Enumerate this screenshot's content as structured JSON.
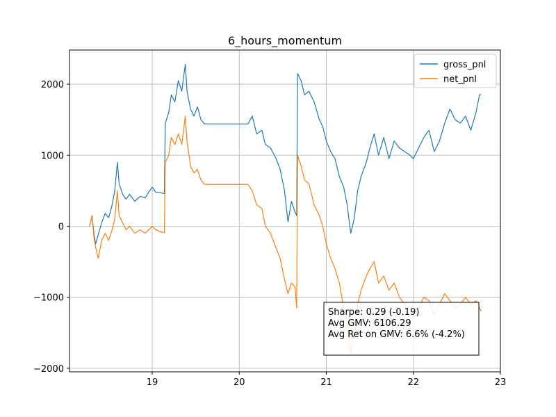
{
  "chart_data": {
    "type": "line",
    "title": "6_hours_momentum",
    "xlabel": "",
    "ylabel": "",
    "xlim": [
      18.05,
      23.0
    ],
    "ylim": [
      -2050,
      2480
    ],
    "xticks": [
      19,
      20,
      21,
      22,
      23
    ],
    "xtick_labels": [
      "19",
      "20",
      "21",
      "22",
      "23"
    ],
    "yticks": [
      -2000,
      -1000,
      0,
      1000,
      2000
    ],
    "ytick_labels": [
      "−2000",
      "−1000",
      "0",
      "1000",
      "2000"
    ],
    "grid": true,
    "legend": {
      "placement": "top-right"
    },
    "series": [
      {
        "name": "gross_pnl",
        "color": "#1f77b4",
        "points": [
          [
            18.28,
            0
          ],
          [
            18.31,
            150
          ],
          [
            18.33,
            -100
          ],
          [
            18.35,
            -250
          ],
          [
            18.38,
            -120
          ],
          [
            18.42,
            50
          ],
          [
            18.46,
            180
          ],
          [
            18.5,
            120
          ],
          [
            18.54,
            300
          ],
          [
            18.57,
            500
          ],
          [
            18.6,
            900
          ],
          [
            18.62,
            600
          ],
          [
            18.66,
            450
          ],
          [
            18.7,
            380
          ],
          [
            18.74,
            450
          ],
          [
            18.8,
            350
          ],
          [
            18.86,
            420
          ],
          [
            18.92,
            400
          ],
          [
            18.96,
            480
          ],
          [
            19.0,
            550
          ],
          [
            19.04,
            480
          ],
          [
            19.1,
            470
          ],
          [
            19.14,
            460
          ],
          [
            19.15,
            1450
          ],
          [
            19.19,
            1600
          ],
          [
            19.22,
            1850
          ],
          [
            19.26,
            1750
          ],
          [
            19.3,
            2050
          ],
          [
            19.34,
            1900
          ],
          [
            19.38,
            2280
          ],
          [
            19.4,
            1900
          ],
          [
            19.44,
            1650
          ],
          [
            19.48,
            1550
          ],
          [
            19.52,
            1680
          ],
          [
            19.56,
            1500
          ],
          [
            19.6,
            1440
          ],
          [
            19.8,
            1440
          ],
          [
            20.0,
            1440
          ],
          [
            20.1,
            1440
          ],
          [
            20.15,
            1550
          ],
          [
            20.2,
            1300
          ],
          [
            20.26,
            1350
          ],
          [
            20.3,
            1150
          ],
          [
            20.36,
            1100
          ],
          [
            20.42,
            960
          ],
          [
            20.47,
            800
          ],
          [
            20.52,
            500
          ],
          [
            20.56,
            60
          ],
          [
            20.6,
            350
          ],
          [
            20.64,
            200
          ],
          [
            20.66,
            150
          ],
          [
            20.67,
            2150
          ],
          [
            20.71,
            2050
          ],
          [
            20.75,
            1850
          ],
          [
            20.8,
            1900
          ],
          [
            20.86,
            1750
          ],
          [
            20.92,
            1500
          ],
          [
            20.96,
            1400
          ],
          [
            21.0,
            1200
          ],
          [
            21.05,
            1050
          ],
          [
            21.1,
            950
          ],
          [
            21.15,
            700
          ],
          [
            21.2,
            550
          ],
          [
            21.24,
            300
          ],
          [
            21.28,
            -100
          ],
          [
            21.32,
            100
          ],
          [
            21.36,
            500
          ],
          [
            21.4,
            700
          ],
          [
            21.46,
            900
          ],
          [
            21.5,
            1100
          ],
          [
            21.55,
            1300
          ],
          [
            21.6,
            1000
          ],
          [
            21.66,
            1250
          ],
          [
            21.72,
            950
          ],
          [
            21.78,
            1200
          ],
          [
            21.84,
            1100
          ],
          [
            21.9,
            1050
          ],
          [
            21.96,
            1000
          ],
          [
            22.0,
            950
          ],
          [
            22.06,
            1100
          ],
          [
            22.12,
            1250
          ],
          [
            22.18,
            1350
          ],
          [
            22.24,
            1050
          ],
          [
            22.3,
            1200
          ],
          [
            22.36,
            1450
          ],
          [
            22.42,
            1650
          ],
          [
            22.48,
            1500
          ],
          [
            22.54,
            1450
          ],
          [
            22.6,
            1550
          ],
          [
            22.66,
            1350
          ],
          [
            22.72,
            1600
          ],
          [
            22.76,
            1850
          ],
          [
            22.78,
            1850
          ]
        ]
      },
      {
        "name": "net_pnl",
        "color": "#ff7f0e",
        "points": [
          [
            18.28,
            0
          ],
          [
            18.31,
            150
          ],
          [
            18.33,
            -150
          ],
          [
            18.35,
            -300
          ],
          [
            18.38,
            -450
          ],
          [
            18.42,
            -200
          ],
          [
            18.46,
            -100
          ],
          [
            18.5,
            -200
          ],
          [
            18.54,
            -50
          ],
          [
            18.57,
            100
          ],
          [
            18.6,
            500
          ],
          [
            18.62,
            150
          ],
          [
            18.66,
            50
          ],
          [
            18.7,
            -50
          ],
          [
            18.74,
            0
          ],
          [
            18.8,
            -100
          ],
          [
            18.86,
            -50
          ],
          [
            18.92,
            -100
          ],
          [
            18.96,
            -50
          ],
          [
            19.0,
            0
          ],
          [
            19.04,
            -50
          ],
          [
            19.1,
            -80
          ],
          [
            19.14,
            -90
          ],
          [
            19.15,
            900
          ],
          [
            19.19,
            1000
          ],
          [
            19.22,
            1250
          ],
          [
            19.26,
            1150
          ],
          [
            19.3,
            1300
          ],
          [
            19.34,
            1150
          ],
          [
            19.38,
            1550
          ],
          [
            19.4,
            1200
          ],
          [
            19.44,
            850
          ],
          [
            19.48,
            750
          ],
          [
            19.52,
            800
          ],
          [
            19.56,
            650
          ],
          [
            19.6,
            590
          ],
          [
            19.8,
            590
          ],
          [
            20.0,
            590
          ],
          [
            20.1,
            590
          ],
          [
            20.15,
            500
          ],
          [
            20.2,
            300
          ],
          [
            20.26,
            250
          ],
          [
            20.3,
            0
          ],
          [
            20.36,
            -100
          ],
          [
            20.42,
            -300
          ],
          [
            20.47,
            -450
          ],
          [
            20.52,
            -750
          ],
          [
            20.56,
            -950
          ],
          [
            20.6,
            -800
          ],
          [
            20.64,
            -850
          ],
          [
            20.66,
            -1150
          ],
          [
            20.67,
            1000
          ],
          [
            20.71,
            850
          ],
          [
            20.75,
            650
          ],
          [
            20.8,
            600
          ],
          [
            20.86,
            300
          ],
          [
            20.92,
            150
          ],
          [
            20.96,
            0
          ],
          [
            21.0,
            -250
          ],
          [
            21.05,
            -450
          ],
          [
            21.1,
            -600
          ],
          [
            21.15,
            -800
          ],
          [
            21.2,
            -1150
          ],
          [
            21.24,
            -1350
          ],
          [
            21.28,
            -1800
          ],
          [
            21.32,
            -1500
          ],
          [
            21.36,
            -1100
          ],
          [
            21.4,
            -900
          ],
          [
            21.46,
            -700
          ],
          [
            21.5,
            -600
          ],
          [
            21.55,
            -500
          ],
          [
            21.6,
            -800
          ],
          [
            21.66,
            -700
          ],
          [
            21.72,
            -900
          ],
          [
            21.78,
            -800
          ],
          [
            21.84,
            -1000
          ],
          [
            21.9,
            -1100
          ],
          [
            21.96,
            -1200
          ],
          [
            22.0,
            -1300
          ],
          [
            22.06,
            -1150
          ],
          [
            22.12,
            -1000
          ],
          [
            22.18,
            -1050
          ],
          [
            22.24,
            -1250
          ],
          [
            22.3,
            -1100
          ],
          [
            22.36,
            -950
          ],
          [
            22.42,
            -1050
          ],
          [
            22.48,
            -1150
          ],
          [
            22.54,
            -1100
          ],
          [
            22.6,
            -1000
          ],
          [
            22.66,
            -1100
          ],
          [
            22.72,
            -1050
          ],
          [
            22.76,
            -1150
          ],
          [
            22.78,
            -1200
          ]
        ]
      }
    ],
    "stats_box": {
      "lines": [
        "Sharpe: 0.29 (-0.19)",
        "Avg GMV: 6106.29",
        "Avg Ret on GMV: 6.6% (-4.2%)"
      ],
      "placement": "lower-right"
    }
  }
}
